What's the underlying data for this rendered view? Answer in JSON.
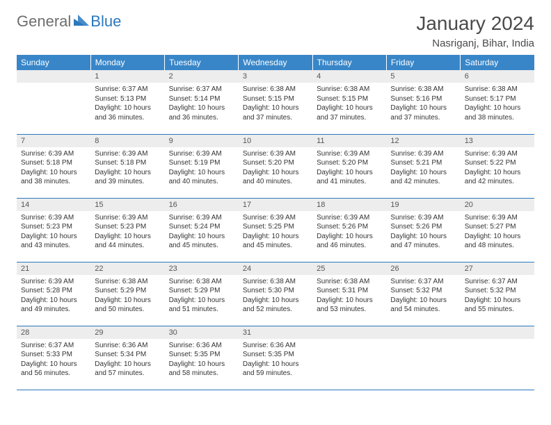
{
  "logo": {
    "text1": "General",
    "text2": "Blue"
  },
  "title": "January 2024",
  "subtitle": "Nasriganj, Bihar, India",
  "colors": {
    "header_bg": "#3886c8",
    "header_fg": "#ffffff",
    "daynum_bg": "#ededed",
    "rule": "#2978bd",
    "logo_gray": "#6e6e6e",
    "logo_blue": "#2978bd"
  },
  "weekdays": [
    "Sunday",
    "Monday",
    "Tuesday",
    "Wednesday",
    "Thursday",
    "Friday",
    "Saturday"
  ],
  "weeks": [
    [
      {
        "n": "",
        "sr": "",
        "ss": "",
        "dl": ""
      },
      {
        "n": "1",
        "sr": "Sunrise: 6:37 AM",
        "ss": "Sunset: 5:13 PM",
        "dl": "Daylight: 10 hours and 36 minutes."
      },
      {
        "n": "2",
        "sr": "Sunrise: 6:37 AM",
        "ss": "Sunset: 5:14 PM",
        "dl": "Daylight: 10 hours and 36 minutes."
      },
      {
        "n": "3",
        "sr": "Sunrise: 6:38 AM",
        "ss": "Sunset: 5:15 PM",
        "dl": "Daylight: 10 hours and 37 minutes."
      },
      {
        "n": "4",
        "sr": "Sunrise: 6:38 AM",
        "ss": "Sunset: 5:15 PM",
        "dl": "Daylight: 10 hours and 37 minutes."
      },
      {
        "n": "5",
        "sr": "Sunrise: 6:38 AM",
        "ss": "Sunset: 5:16 PM",
        "dl": "Daylight: 10 hours and 37 minutes."
      },
      {
        "n": "6",
        "sr": "Sunrise: 6:38 AM",
        "ss": "Sunset: 5:17 PM",
        "dl": "Daylight: 10 hours and 38 minutes."
      }
    ],
    [
      {
        "n": "7",
        "sr": "Sunrise: 6:39 AM",
        "ss": "Sunset: 5:18 PM",
        "dl": "Daylight: 10 hours and 38 minutes."
      },
      {
        "n": "8",
        "sr": "Sunrise: 6:39 AM",
        "ss": "Sunset: 5:18 PM",
        "dl": "Daylight: 10 hours and 39 minutes."
      },
      {
        "n": "9",
        "sr": "Sunrise: 6:39 AM",
        "ss": "Sunset: 5:19 PM",
        "dl": "Daylight: 10 hours and 40 minutes."
      },
      {
        "n": "10",
        "sr": "Sunrise: 6:39 AM",
        "ss": "Sunset: 5:20 PM",
        "dl": "Daylight: 10 hours and 40 minutes."
      },
      {
        "n": "11",
        "sr": "Sunrise: 6:39 AM",
        "ss": "Sunset: 5:20 PM",
        "dl": "Daylight: 10 hours and 41 minutes."
      },
      {
        "n": "12",
        "sr": "Sunrise: 6:39 AM",
        "ss": "Sunset: 5:21 PM",
        "dl": "Daylight: 10 hours and 42 minutes."
      },
      {
        "n": "13",
        "sr": "Sunrise: 6:39 AM",
        "ss": "Sunset: 5:22 PM",
        "dl": "Daylight: 10 hours and 42 minutes."
      }
    ],
    [
      {
        "n": "14",
        "sr": "Sunrise: 6:39 AM",
        "ss": "Sunset: 5:23 PM",
        "dl": "Daylight: 10 hours and 43 minutes."
      },
      {
        "n": "15",
        "sr": "Sunrise: 6:39 AM",
        "ss": "Sunset: 5:23 PM",
        "dl": "Daylight: 10 hours and 44 minutes."
      },
      {
        "n": "16",
        "sr": "Sunrise: 6:39 AM",
        "ss": "Sunset: 5:24 PM",
        "dl": "Daylight: 10 hours and 45 minutes."
      },
      {
        "n": "17",
        "sr": "Sunrise: 6:39 AM",
        "ss": "Sunset: 5:25 PM",
        "dl": "Daylight: 10 hours and 45 minutes."
      },
      {
        "n": "18",
        "sr": "Sunrise: 6:39 AM",
        "ss": "Sunset: 5:26 PM",
        "dl": "Daylight: 10 hours and 46 minutes."
      },
      {
        "n": "19",
        "sr": "Sunrise: 6:39 AM",
        "ss": "Sunset: 5:26 PM",
        "dl": "Daylight: 10 hours and 47 minutes."
      },
      {
        "n": "20",
        "sr": "Sunrise: 6:39 AM",
        "ss": "Sunset: 5:27 PM",
        "dl": "Daylight: 10 hours and 48 minutes."
      }
    ],
    [
      {
        "n": "21",
        "sr": "Sunrise: 6:39 AM",
        "ss": "Sunset: 5:28 PM",
        "dl": "Daylight: 10 hours and 49 minutes."
      },
      {
        "n": "22",
        "sr": "Sunrise: 6:38 AM",
        "ss": "Sunset: 5:29 PM",
        "dl": "Daylight: 10 hours and 50 minutes."
      },
      {
        "n": "23",
        "sr": "Sunrise: 6:38 AM",
        "ss": "Sunset: 5:29 PM",
        "dl": "Daylight: 10 hours and 51 minutes."
      },
      {
        "n": "24",
        "sr": "Sunrise: 6:38 AM",
        "ss": "Sunset: 5:30 PM",
        "dl": "Daylight: 10 hours and 52 minutes."
      },
      {
        "n": "25",
        "sr": "Sunrise: 6:38 AM",
        "ss": "Sunset: 5:31 PM",
        "dl": "Daylight: 10 hours and 53 minutes."
      },
      {
        "n": "26",
        "sr": "Sunrise: 6:37 AM",
        "ss": "Sunset: 5:32 PM",
        "dl": "Daylight: 10 hours and 54 minutes."
      },
      {
        "n": "27",
        "sr": "Sunrise: 6:37 AM",
        "ss": "Sunset: 5:32 PM",
        "dl": "Daylight: 10 hours and 55 minutes."
      }
    ],
    [
      {
        "n": "28",
        "sr": "Sunrise: 6:37 AM",
        "ss": "Sunset: 5:33 PM",
        "dl": "Daylight: 10 hours and 56 minutes."
      },
      {
        "n": "29",
        "sr": "Sunrise: 6:36 AM",
        "ss": "Sunset: 5:34 PM",
        "dl": "Daylight: 10 hours and 57 minutes."
      },
      {
        "n": "30",
        "sr": "Sunrise: 6:36 AM",
        "ss": "Sunset: 5:35 PM",
        "dl": "Daylight: 10 hours and 58 minutes."
      },
      {
        "n": "31",
        "sr": "Sunrise: 6:36 AM",
        "ss": "Sunset: 5:35 PM",
        "dl": "Daylight: 10 hours and 59 minutes."
      },
      {
        "n": "",
        "sr": "",
        "ss": "",
        "dl": ""
      },
      {
        "n": "",
        "sr": "",
        "ss": "",
        "dl": ""
      },
      {
        "n": "",
        "sr": "",
        "ss": "",
        "dl": ""
      }
    ]
  ]
}
